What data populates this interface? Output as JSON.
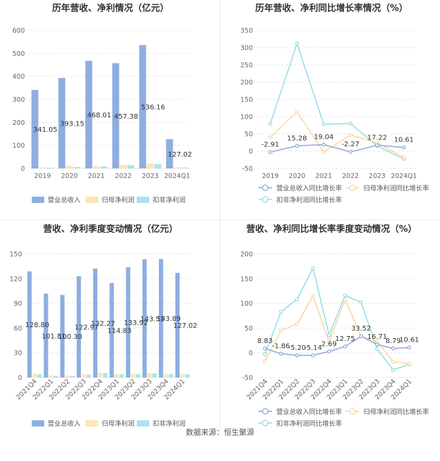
{
  "source_text": "数据来源：恒生聚源",
  "colors": {
    "revenue": "#8eaee0",
    "net_profit": "#fde4b9",
    "deducted_profit": "#a9e4ea",
    "revenue_line": "#8ea7d9",
    "net_line": "#fbd59c",
    "deducted_line": "#8fdde4",
    "grid": "#e6e6e6",
    "axis_text": "#666666"
  },
  "chart_data": [
    {
      "type": "bar",
      "title": "历年营收、净利情况（亿元）",
      "categories": [
        "2019",
        "2020",
        "2021",
        "2022",
        "2023",
        "2024Q1"
      ],
      "ylim": [
        0,
        600
      ],
      "yticks": [
        0,
        100,
        200,
        300,
        400,
        500,
        600
      ],
      "series": [
        {
          "name": "营业总收入",
          "values": [
            341.05,
            393.15,
            468.01,
            457.38,
            536.16,
            127.02
          ],
          "labels": [
            "341.05",
            "393.15",
            "468.01",
            "457.38",
            "536.16",
            "127.02"
          ]
        },
        {
          "name": "归母净利润",
          "values": [
            5,
            11,
            10,
            16,
            21,
            5
          ]
        },
        {
          "name": "扣非净利润",
          "values": [
            3,
            6,
            8,
            14,
            18,
            4
          ]
        }
      ],
      "legend": "bottom"
    },
    {
      "type": "line",
      "title": "历年营收、净利同比增长率情况（%）",
      "categories": [
        "2019",
        "2020",
        "2021",
        "2022",
        "2023",
        "2024Q1"
      ],
      "ylim": [
        -50,
        350
      ],
      "yticks": [
        -50,
        0,
        50,
        100,
        150,
        200,
        250,
        300,
        350
      ],
      "series": [
        {
          "name": "营业总收入同比增长率",
          "values": [
            -2.91,
            15.28,
            19.04,
            -2.27,
            17.22,
            10.61
          ],
          "labels": [
            "-2.91",
            "15.28",
            "19.04",
            "-2.27",
            "17.22",
            "10.61"
          ]
        },
        {
          "name": "归母净利润同比增长率",
          "values": [
            40,
            114,
            -3,
            47,
            24,
            -18
          ]
        },
        {
          "name": "扣非净利润同比增长率",
          "values": [
            80,
            312,
            78,
            80,
            15,
            -23
          ]
        }
      ],
      "legend": "bottom"
    },
    {
      "type": "bar",
      "title": "营收、净利季度变动情况（亿元）",
      "categories": [
        "2021Q4",
        "2022Q1",
        "2022Q2",
        "2022Q3",
        "2022Q4",
        "2023Q1",
        "2023Q2",
        "2023Q3",
        "2023Q4",
        "2024Q1"
      ],
      "ylim": [
        0,
        150
      ],
      "yticks": [
        0,
        30,
        60,
        90,
        120,
        150
      ],
      "series": [
        {
          "name": "营业总收入",
          "values": [
            128.8,
            101.81,
            100.3,
            122.97,
            132.27,
            114.83,
            133.92,
            143.51,
            143.89,
            127.02
          ],
          "labels": [
            "128.80",
            "101.81",
            "100.30",
            "122.97",
            "132.27",
            "114.83",
            "133.92",
            "143.51",
            "143.89",
            "127.02"
          ]
        },
        {
          "name": "归母净利润",
          "values": [
            4.5,
            2.5,
            2.5,
            4,
            5.5,
            4.5,
            4.5,
            5.5,
            4.5,
            4.5
          ]
        },
        {
          "name": "扣非净利润",
          "values": [
            4,
            2,
            2,
            3.5,
            5.5,
            4,
            4,
            5,
            4,
            4
          ]
        }
      ],
      "legend": "bottom"
    },
    {
      "type": "line",
      "title": "营收、净利同比增长率季度变动情况（%）",
      "categories": [
        "2021Q4",
        "2022Q1",
        "2022Q2",
        "2022Q3",
        "2022Q4",
        "2023Q1",
        "2023Q2",
        "2023Q3",
        "2023Q4",
        "2024Q1"
      ],
      "ylim": [
        -50,
        200
      ],
      "yticks": [
        -50,
        0,
        50,
        100,
        150,
        200
      ],
      "series": [
        {
          "name": "营业总收入同比增长率",
          "values": [
            8.83,
            -1.86,
            -5.2,
            -5.14,
            2.69,
            12.75,
            33.52,
            16.71,
            8.79,
            10.61
          ],
          "labels": [
            "8.83",
            "-1.86",
            "-5.20",
            "-5.14",
            "2.69",
            "12.75",
            "33.52",
            "16.71",
            "8.79",
            "10.61"
          ]
        },
        {
          "name": "归母净利润同比增长率",
          "values": [
            -17,
            45,
            58,
            115,
            22,
            108,
            33,
            23,
            -18,
            -22
          ]
        },
        {
          "name": "扣非净利润同比增长率",
          "values": [
            -3,
            83,
            108,
            171,
            36,
            116,
            102,
            8,
            -35,
            -23
          ]
        }
      ],
      "legend": "bottom"
    }
  ]
}
